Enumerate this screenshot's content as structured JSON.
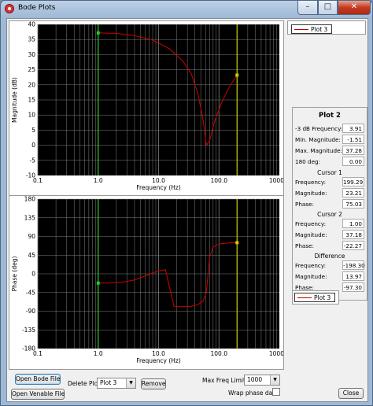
{
  "window": {
    "title": "Bode Plots"
  },
  "magnitude_plot": {
    "xlabel": "Frequency (Hz)",
    "ylabel": "Magnitude (dB)",
    "y_ticks": [
      "40",
      "35",
      "30",
      "25",
      "20",
      "15",
      "10",
      "5",
      "0",
      "-5",
      "-10"
    ],
    "x_ticks": [
      "0.1",
      "1.0",
      "10.0",
      "100.0",
      "1000.0"
    ],
    "cursor1_hz": 199.29,
    "cursor2_hz": 1.0
  },
  "phase_plot": {
    "xlabel": "Frequency (Hz)",
    "ylabel": "Phase (deg)",
    "y_ticks": [
      "180",
      "135",
      "90",
      "45",
      "0",
      "-45",
      "-90",
      "-135",
      "-180"
    ],
    "x_ticks": [
      "0.1",
      "1.0",
      "10.0",
      "100.0",
      "1000.0"
    ]
  },
  "chart_data": [
    {
      "type": "line",
      "xlabel": "Frequency (Hz)",
      "ylabel": "Magnitude (dB)",
      "x_scale": "log",
      "xlim": [
        0.1,
        1000
      ],
      "ylim": [
        -10,
        40
      ],
      "series": [
        {
          "name": "Plot 3",
          "x": [
            1.0,
            2.0,
            4.0,
            8.0,
            15.0,
            25.0,
            35.0,
            45.0,
            55.0,
            62.0,
            70.0,
            85.0,
            110.0,
            150.0,
            199.29
          ],
          "y": [
            37.18,
            37.0,
            36.3,
            34.8,
            32.0,
            28.0,
            23.5,
            17.0,
            8.0,
            0.0,
            1.5,
            8.0,
            14.0,
            19.5,
            23.21
          ]
        }
      ]
    },
    {
      "type": "line",
      "xlabel": "Frequency (Hz)",
      "ylabel": "Phase (deg)",
      "x_scale": "log",
      "xlim": [
        0.1,
        1000
      ],
      "ylim": [
        -180,
        180
      ],
      "series": [
        {
          "name": "Plot 3",
          "x": [
            1.0,
            1.5,
            2.5,
            4.0,
            6.0,
            9.0,
            13.0,
            18.0,
            25.0,
            35.0,
            45.0,
            55.0,
            62.0,
            70.0,
            80.0,
            100.0,
            140.0,
            199.29
          ],
          "y": [
            -22.27,
            -22.0,
            -20.0,
            -15.0,
            -5.0,
            5.0,
            10.0,
            -78.0,
            -79.0,
            -78.0,
            -74.0,
            -65.0,
            -45.0,
            40.0,
            64.0,
            72.0,
            74.0,
            75.03
          ]
        }
      ]
    }
  ],
  "legend_top": {
    "label": "Plot 3"
  },
  "legend_bottom": {
    "label": "Plot 3"
  },
  "info_panel": {
    "title": "Plot 2",
    "rows_top": [
      {
        "label": "-3 dB Frequency:",
        "value": "3.91"
      },
      {
        "label": "Min. Magnitude:",
        "value": "-1.51"
      },
      {
        "label": "Max. Magnitude:",
        "value": "37.28"
      },
      {
        "label": "180 deg:",
        "value": "0.00"
      }
    ],
    "cursor1": {
      "title": "Cursor 1",
      "rows": [
        {
          "label": "Frequency:",
          "value": "199.29"
        },
        {
          "label": "Magnitude:",
          "value": "23.21"
        },
        {
          "label": "Phase:",
          "value": "75.03"
        }
      ]
    },
    "cursor2": {
      "title": "Cursor 2",
      "rows": [
        {
          "label": "Frequency:",
          "value": "1.00"
        },
        {
          "label": "Magnitude:",
          "value": "37.18"
        },
        {
          "label": "Phase:",
          "value": "-22.27"
        }
      ]
    },
    "difference": {
      "title": "Difference",
      "rows": [
        {
          "label": "Frequency:",
          "value": "-198.30"
        },
        {
          "label": "Magnitude:",
          "value": "13.97"
        },
        {
          "label": "Phase:",
          "value": "-97.30"
        }
      ]
    }
  },
  "controls": {
    "open_bode_file": "Open Bode File",
    "open_venable_file": "Open Venable File",
    "delete_plot_label": "Delete Plot:",
    "delete_plot_value": "Plot 3",
    "remove": "Remove",
    "max_freq_label": "Max Freq Limit",
    "max_freq_value": "1000",
    "wrap_phase_label": "Wrap phase data",
    "close": "Close"
  },
  "colors": {
    "plot_bg": "#000000",
    "trace": "#cc0000",
    "cursor1": "#cccc00",
    "cursor2": "#22cc22",
    "grid": "#808080"
  }
}
